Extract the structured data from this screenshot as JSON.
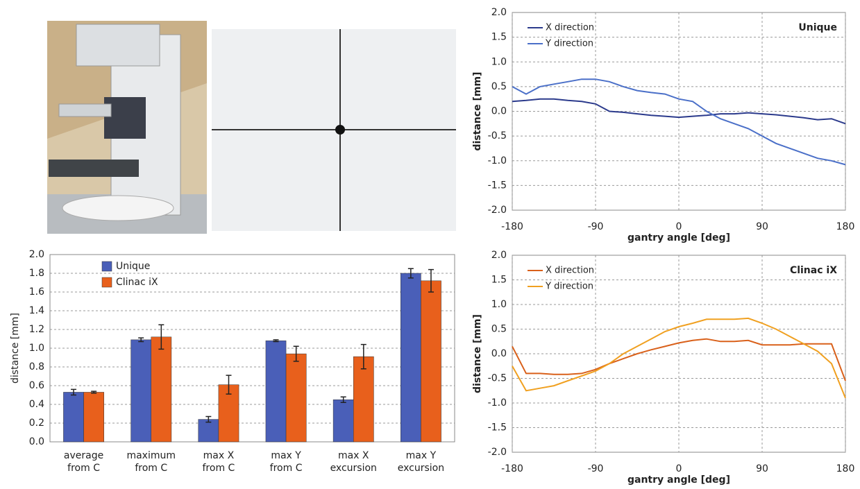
{
  "chart_data": [
    {
      "type": "bar",
      "ylabel": "distance [mm]",
      "categories": [
        [
          "average",
          "from C"
        ],
        [
          "maximum",
          "from C"
        ],
        [
          "max X",
          "from C"
        ],
        [
          "max Y",
          "from C"
        ],
        [
          "max X",
          "excursion"
        ],
        [
          "max Y",
          "excursion"
        ]
      ],
      "series": [
        {
          "name": "Unique",
          "color": "#4a5fb8",
          "values": [
            0.53,
            1.09,
            0.24,
            1.08,
            0.45,
            1.8
          ],
          "errors": [
            0.03,
            0.02,
            0.03,
            0.01,
            0.03,
            0.05
          ]
        },
        {
          "name": "Clinac iX",
          "color": "#e8601c",
          "values": [
            0.53,
            1.12,
            0.61,
            0.94,
            0.91,
            1.72
          ],
          "errors": [
            0.01,
            0.13,
            0.1,
            0.08,
            0.13,
            0.12
          ]
        }
      ],
      "ylim": [
        0,
        2
      ],
      "yticks": [
        {
          "value": 0,
          "label": "0.0"
        },
        {
          "value": 0.2,
          "label": "0.2"
        },
        {
          "value": 0.4,
          "label": "0.4"
        },
        {
          "value": 0.6,
          "label": "0.6"
        },
        {
          "value": 0.8,
          "label": "0.8"
        },
        {
          "value": 1,
          "label": "1.0"
        },
        {
          "value": 1.2,
          "label": "1.2"
        },
        {
          "value": 1.4,
          "label": "1.4"
        },
        {
          "value": 1.6,
          "label": "1.6"
        },
        {
          "value": 1.8,
          "label": "1.8"
        },
        {
          "value": 2,
          "label": "2.0"
        }
      ],
      "grid": true,
      "legend": "top-left"
    },
    {
      "type": "line",
      "annotation": "Unique",
      "xlabel": "gantry angle [deg]",
      "ylabel": "distance [mm]",
      "x": [
        -180,
        -165,
        -150,
        -135,
        -120,
        -105,
        -90,
        -75,
        -60,
        -45,
        -30,
        -15,
        0,
        15,
        30,
        45,
        60,
        75,
        90,
        105,
        120,
        135,
        150,
        165,
        180
      ],
      "series": [
        {
          "name": "X direction",
          "color": "#2b3a8c",
          "values": [
            0.2,
            0.22,
            0.25,
            0.25,
            0.22,
            0.2,
            0.15,
            0.0,
            -0.02,
            -0.05,
            -0.08,
            -0.1,
            -0.12,
            -0.1,
            -0.08,
            -0.05,
            -0.05,
            -0.03,
            -0.05,
            -0.07,
            -0.1,
            -0.13,
            -0.17,
            -0.15,
            -0.25
          ]
        },
        {
          "name": "Y direction",
          "color": "#4a6fc8",
          "values": [
            0.5,
            0.35,
            0.5,
            0.55,
            0.6,
            0.65,
            0.65,
            0.6,
            0.5,
            0.42,
            0.38,
            0.35,
            0.25,
            0.2,
            0.0,
            -0.15,
            -0.25,
            -0.35,
            -0.5,
            -0.65,
            -0.75,
            -0.85,
            -0.95,
            -1.0,
            -1.08
          ]
        }
      ],
      "xlim": [
        -180,
        180
      ],
      "xticks": [
        -180,
        -90,
        0,
        90,
        180
      ],
      "ylim": [
        -2,
        2
      ],
      "yticks": [
        {
          "value": -2,
          "label": "-2.0"
        },
        {
          "value": -1.5,
          "label": "-1.5"
        },
        {
          "value": -1,
          "label": "-1.0"
        },
        {
          "value": -0.5,
          "label": "-0.5"
        },
        {
          "value": 0,
          "label": "0.0"
        },
        {
          "value": 0.5,
          "label": "0.5"
        },
        {
          "value": 1,
          "label": "1.0"
        },
        {
          "value": 1.5,
          "label": "1.5"
        },
        {
          "value": 2,
          "label": "2.0"
        }
      ],
      "grid": true,
      "legend": "top-left"
    },
    {
      "type": "line",
      "annotation": "Clinac iX",
      "xlabel": "gantry angle [deg]",
      "ylabel": "distance [mm]",
      "x": [
        -180,
        -165,
        -150,
        -135,
        -120,
        -105,
        -90,
        -75,
        -60,
        -45,
        -30,
        -15,
        0,
        15,
        30,
        45,
        60,
        75,
        90,
        105,
        120,
        135,
        150,
        165,
        180
      ],
      "series": [
        {
          "name": "X direction",
          "color": "#d9601a",
          "values": [
            0.15,
            -0.4,
            -0.4,
            -0.42,
            -0.42,
            -0.4,
            -0.32,
            -0.2,
            -0.1,
            0.0,
            0.08,
            0.15,
            0.22,
            0.27,
            0.3,
            0.25,
            0.25,
            0.27,
            0.18,
            0.18,
            0.18,
            0.2,
            0.2,
            0.2,
            -0.55
          ]
        },
        {
          "name": "Y direction",
          "color": "#f0a020",
          "values": [
            -0.25,
            -0.75,
            -0.7,
            -0.65,
            -0.55,
            -0.45,
            -0.35,
            -0.2,
            0.0,
            0.15,
            0.3,
            0.45,
            0.55,
            0.62,
            0.7,
            0.7,
            0.7,
            0.72,
            0.62,
            0.5,
            0.35,
            0.2,
            0.05,
            -0.2,
            -0.9
          ]
        }
      ],
      "xlim": [
        -180,
        180
      ],
      "xticks": [
        -180,
        -90,
        0,
        90,
        180
      ],
      "ylim": [
        -2,
        2
      ],
      "yticks": [
        {
          "value": -2,
          "label": "-2.0"
        },
        {
          "value": -1.5,
          "label": "-1.5"
        },
        {
          "value": -1,
          "label": "-1.0"
        },
        {
          "value": -0.5,
          "label": "-0.5"
        },
        {
          "value": 0,
          "label": "0.0"
        },
        {
          "value": 0.5,
          "label": "0.5"
        },
        {
          "value": 1,
          "label": "1.0"
        },
        {
          "value": 1.5,
          "label": "1.5"
        },
        {
          "value": 2,
          "label": "2.0"
        }
      ],
      "grid": true,
      "legend": "top-left"
    }
  ]
}
